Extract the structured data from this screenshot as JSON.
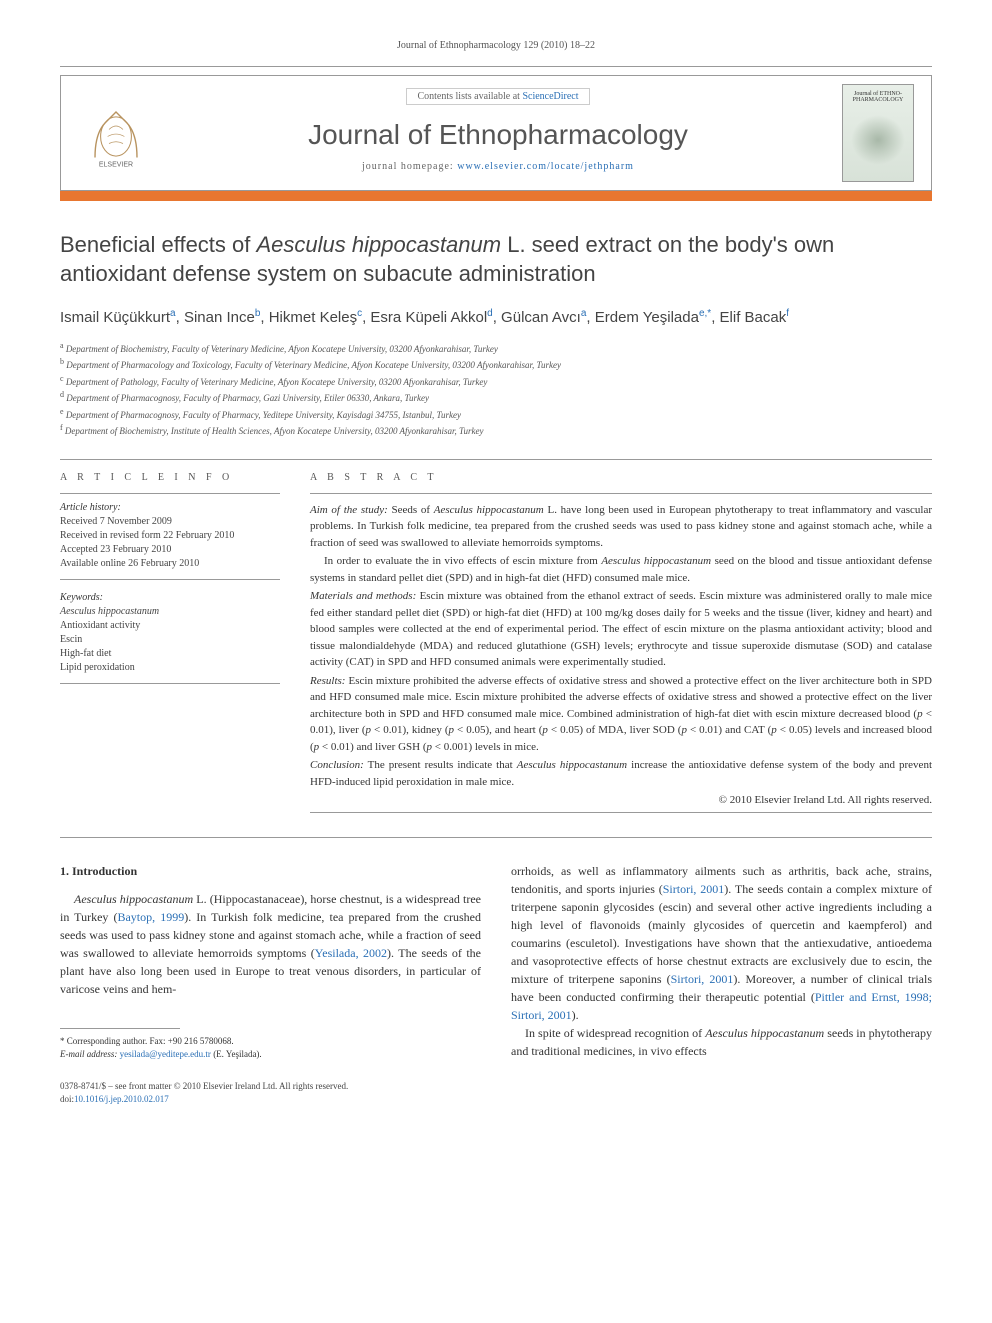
{
  "running_header": "Journal of Ethnopharmacology 129 (2010) 18–22",
  "banner": {
    "contents_prefix": "Contents lists available at ",
    "contents_link": "ScienceDirect",
    "journal_name": "Journal of Ethnopharmacology",
    "homepage_prefix": "journal homepage: ",
    "homepage_link": "www.elsevier.com/locate/jethpharm",
    "cover_text": "Journal of\nETHNO-\nPHARMACOLOGY"
  },
  "title_html": "Beneficial effects of <em>Aesculus hippocastanum</em> L. seed extract on the body's own antioxidant defense system on subacute administration",
  "authors_html": "Ismail Küçükkurt<sup>a</sup>, Sinan Ince<sup>b</sup>, Hikmet Keleş<sup>c</sup>, Esra Küpeli Akkol<sup>d</sup>, Gülcan Avcı<sup>a</sup>, Erdem Yeşilada<sup>e,*</sup>, Elif Bacak<sup>f</sup>",
  "affiliations": [
    {
      "sup": "a",
      "text": "Department of Biochemistry, Faculty of Veterinary Medicine, Afyon Kocatepe University, 03200 Afyonkarahisar, Turkey"
    },
    {
      "sup": "b",
      "text": "Department of Pharmacology and Toxicology, Faculty of Veterinary Medicine, Afyon Kocatepe University, 03200 Afyonkarahisar, Turkey"
    },
    {
      "sup": "c",
      "text": "Department of Pathology, Faculty of Veterinary Medicine, Afyon Kocatepe University, 03200 Afyonkarahisar, Turkey"
    },
    {
      "sup": "d",
      "text": "Department of Pharmacognosy, Faculty of Pharmacy, Gazi University, Etiler 06330, Ankara, Turkey"
    },
    {
      "sup": "e",
      "text": "Department of Pharmacognosy, Faculty of Pharmacy, Yeditepe University, Kayisdagi 34755, Istanbul, Turkey"
    },
    {
      "sup": "f",
      "text": "Department of Biochemistry, Institute of Health Sciences, Afyon Kocatepe University, 03200 Afyonkarahisar, Turkey"
    }
  ],
  "article_info": {
    "label": "A R T I C L E   I N F O",
    "history_label": "Article history:",
    "history": [
      "Received 7 November 2009",
      "Received in revised form 22 February 2010",
      "Accepted 23 February 2010",
      "Available online 26 February 2010"
    ],
    "keywords_label": "Keywords:",
    "keywords": [
      "Aesculus hippocastanum",
      "Antioxidant activity",
      "Escin",
      "High-fat diet",
      "Lipid peroxidation"
    ]
  },
  "abstract": {
    "label": "A B S T R A C T",
    "paragraphs_html": [
      "<span class=\"abstract-heading\">Aim of the study:</span> Seeds of <em>Aesculus hippocastanum</em> L. have long been used in European phytotherapy to treat inflammatory and vascular problems. In Turkish folk medicine, tea prepared from the crushed seeds was used to pass kidney stone and against stomach ache, while a fraction of seed was swallowed to alleviate hemorroids symptoms.",
      "In order to evaluate the in vivo effects of escin mixture from <em>Aesculus hippocastanum</em> seed on the blood and tissue antioxidant defense systems in standard pellet diet (SPD) and in high-fat diet (HFD) consumed male mice.",
      "<span class=\"abstract-heading\">Materials and methods:</span> Escin mixture was obtained from the ethanol extract of seeds. Escin mixture was administered orally to male mice fed either standard pellet diet (SPD) or high-fat diet (HFD) at 100 mg/kg doses daily for 5 weeks and the tissue (liver, kidney and heart) and blood samples were collected at the end of experimental period. The effect of escin mixture on the plasma antioxidant activity; blood and tissue malondialdehyde (MDA) and reduced glutathione (GSH) levels; erythrocyte and tissue superoxide dismutase (SOD) and catalase activity (CAT) in SPD and HFD consumed animals were experimentally studied.",
      "<span class=\"abstract-heading\">Results:</span> Escin mixture prohibited the adverse effects of oxidative stress and showed a protective effect on the liver architecture both in SPD and HFD consumed male mice. Escin mixture prohibited the adverse effects of oxidative stress and showed a protective effect on the liver architecture both in SPD and HFD consumed male mice. Combined administration of high-fat diet with escin mixture decreased blood (<em>p</em> < 0.01), liver (<em>p</em> < 0.01), kidney (<em>p</em> < 0.05), and heart (<em>p</em> < 0.05) of MDA, liver SOD (<em>p</em> < 0.01) and CAT (<em>p</em> < 0.05) levels and increased blood (<em>p</em> < 0.01) and liver GSH (<em>p</em> < 0.001) levels in mice.",
      "<span class=\"abstract-heading\">Conclusion:</span> The present results indicate that <em>Aesculus hippocastanum</em> increase the antioxidative defense system of the body and prevent HFD-induced lipid peroxidation in male mice."
    ],
    "copyright": "© 2010 Elsevier Ireland Ltd. All rights reserved."
  },
  "body": {
    "section_heading": "1.  Introduction",
    "left_html": "<em>Aesculus hippocastanum</em> L. (Hippocastanaceae), horse chestnut, is a widespread tree in Turkey (<a href=\"#\">Baytop, 1999</a>). In Turkish folk medicine, tea prepared from the crushed seeds was used to pass kidney stone and against stomach ache, while a fraction of seed was swallowed to alleviate hemorroids symptoms (<a href=\"#\">Yesilada, 2002</a>). The seeds of the plant have also long been used in Europe to treat venous disorders, in particular of varicose veins and hem-",
    "right_html_1": "orrhoids, as well as inflammatory ailments such as arthritis, back ache, strains, tendonitis, and sports injuries (<a href=\"#\">Sirtori, 2001</a>). The seeds contain a complex mixture of triterpene saponin glycosides (escin) and several other active ingredients including a high level of flavonoids (mainly glycosides of quercetin and kaempferol) and coumarins (esculetol). Investigations have shown that the antiexudative, antioedema and vasoprotective effects of horse chestnut extracts are exclusively due to escin, the mixture of triterpene saponins (<a href=\"#\">Sirtori, 2001</a>). Moreover, a number of clinical trials have been conducted confirming their therapeutic potential (<a href=\"#\">Pittler and Ernst, 1998; Sirtori, 2001</a>).",
    "right_html_2": "In spite of widespread recognition of <em>Aesculus hippocastanum</em> seeds in phytotherapy and traditional medicines, in vivo effects"
  },
  "footnote": {
    "corr_label": "* Corresponding author. Fax: +90 216 5780068.",
    "email_label": "E-mail address: ",
    "email": "yesilada@yeditepe.edu.tr",
    "email_suffix": " (E. Yeşilada)."
  },
  "bottom": {
    "issn_line": "0378-8741/$ – see front matter © 2010 Elsevier Ireland Ltd. All rights reserved.",
    "doi_prefix": "doi:",
    "doi": "10.1016/j.jep.2010.02.017"
  },
  "colors": {
    "accent_orange": "#e8762f",
    "link_blue": "#2a6fb5",
    "border_gray": "#999999",
    "text_gray": "#555555"
  }
}
